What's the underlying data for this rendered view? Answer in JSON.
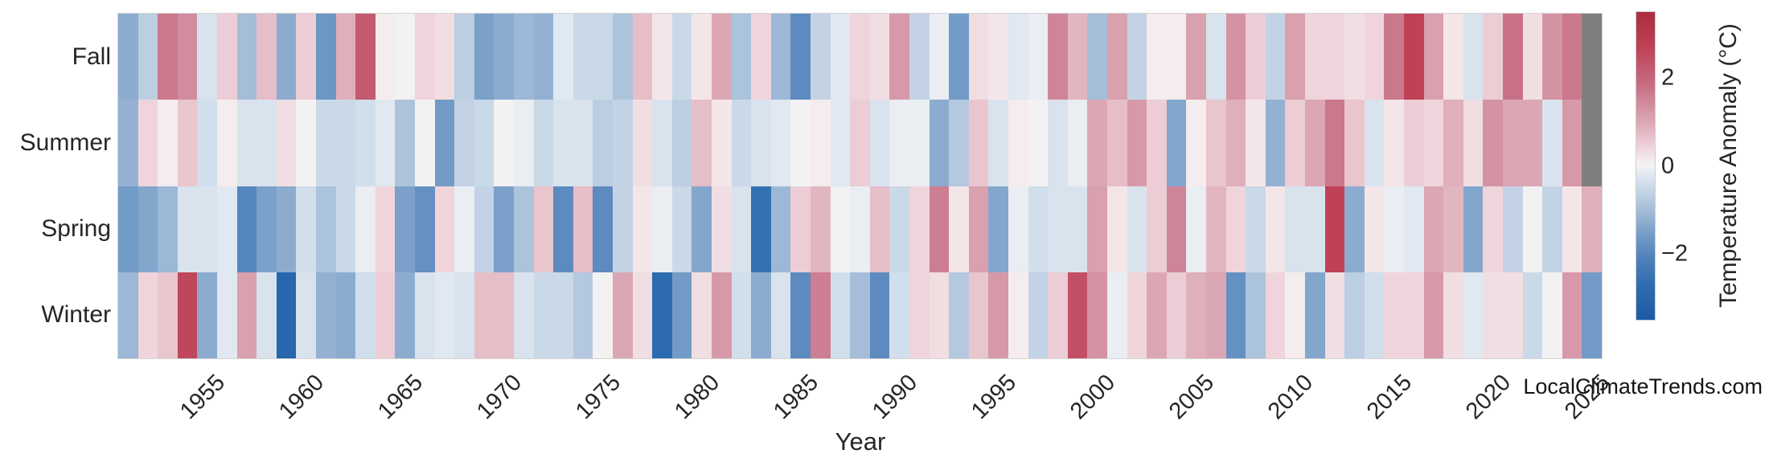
{
  "watermark": "LocalClimateTrends.com",
  "chart_data": {
    "type": "heatmap",
    "xlabel": "Year",
    "rows": [
      "Fall",
      "Summer",
      "Spring",
      "Winter"
    ],
    "year_start": 1951,
    "year_end": 2025,
    "x_ticks": [
      1955,
      1960,
      1965,
      1970,
      1975,
      1980,
      1985,
      1990,
      1995,
      2000,
      2005,
      2010,
      2015,
      2020,
      2025
    ],
    "series": [
      {
        "name": "Fall",
        "values": [
          -1.3,
          -0.7,
          1.7,
          1.4,
          -0.3,
          0.5,
          -1.0,
          0.7,
          -1.3,
          0.5,
          -1.7,
          0.9,
          2.2,
          0.1,
          0.0,
          0.4,
          0.3,
          -0.7,
          -1.5,
          -1.3,
          -1.1,
          -1.2,
          -0.2,
          -0.5,
          -0.5,
          -0.9,
          0.7,
          0.2,
          -0.5,
          0.2,
          1.0,
          -0.9,
          0.4,
          -1.1,
          -1.9,
          -0.6,
          -0.2,
          0.4,
          0.3,
          1.2,
          -0.6,
          -0.1,
          -1.6,
          0.3,
          0.2,
          -0.2,
          -0.1,
          1.5,
          0.8,
          -1.0,
          1.1,
          -0.6,
          0.1,
          0.1,
          1.1,
          -0.3,
          1.3,
          0.5,
          -0.6,
          1.1,
          0.4,
          0.4,
          0.3,
          0.4,
          1.7,
          2.7,
          1.1,
          0.2,
          -0.3,
          0.5,
          1.8,
          0.3,
          1.3,
          1.7,
          null
        ]
      },
      {
        "name": "Summer",
        "values": [
          -1.2,
          0.4,
          0.1,
          0.6,
          -0.4,
          0.1,
          -0.3,
          -0.3,
          0.3,
          0.0,
          -0.5,
          -0.5,
          -0.4,
          -0.2,
          -0.9,
          0.0,
          -1.6,
          -0.6,
          -0.5,
          0.0,
          -0.1,
          -0.5,
          -0.3,
          -0.3,
          -0.7,
          -0.6,
          0.3,
          -0.3,
          -0.7,
          0.7,
          0.2,
          -0.5,
          -0.3,
          -0.2,
          0.0,
          0.1,
          -0.2,
          0.5,
          -0.3,
          -0.1,
          -0.1,
          -1.3,
          -0.8,
          0.6,
          -0.3,
          0.1,
          0.0,
          -0.3,
          -0.1,
          1.0,
          0.7,
          1.2,
          0.5,
          -1.4,
          0.1,
          0.6,
          0.9,
          0.2,
          -1.2,
          0.5,
          1.0,
          1.7,
          0.6,
          -0.3,
          0.2,
          0.5,
          0.4,
          0.9,
          0.3,
          1.3,
          1.0,
          1.0,
          -0.3,
          1.2,
          null
        ]
      },
      {
        "name": "Spring",
        "values": [
          -1.6,
          -1.4,
          -1.1,
          -0.3,
          -0.3,
          -0.2,
          -2.0,
          -1.5,
          -1.3,
          -0.4,
          -0.9,
          -0.5,
          -0.1,
          0.4,
          -1.5,
          -1.8,
          0.4,
          -0.1,
          -0.6,
          -1.5,
          -0.9,
          0.6,
          -1.9,
          0.7,
          -1.9,
          -0.6,
          0.2,
          -0.1,
          -0.5,
          -1.4,
          0.3,
          -0.3,
          -2.6,
          -1.1,
          0.5,
          0.8,
          0.0,
          -0.1,
          0.7,
          -0.5,
          0.4,
          1.6,
          0.2,
          1.1,
          -1.4,
          -0.1,
          -0.4,
          -0.3,
          -0.3,
          1.1,
          0.2,
          -0.3,
          0.5,
          1.5,
          -0.1,
          0.8,
          0.4,
          -0.5,
          0.2,
          -0.3,
          -0.3,
          2.7,
          -1.3,
          0.2,
          -0.1,
          -0.2,
          1.0,
          0.8,
          -1.4,
          0.4,
          -0.6,
          0.0,
          -0.6,
          0.2,
          0.9
        ]
      },
      {
        "name": "Winter",
        "values": [
          -1.1,
          0.4,
          0.6,
          2.6,
          -1.3,
          -0.2,
          1.1,
          -0.3,
          -3.0,
          -0.3,
          -1.2,
          -1.3,
          -0.4,
          0.5,
          -1.3,
          -0.3,
          -0.2,
          -0.3,
          0.7,
          0.7,
          -0.3,
          -0.5,
          -0.5,
          -0.8,
          0.0,
          1.0,
          0.3,
          -2.8,
          -1.6,
          0.3,
          1.2,
          -0.4,
          -1.3,
          -0.3,
          -1.9,
          1.6,
          -0.4,
          -1.0,
          -1.9,
          -0.4,
          0.4,
          0.3,
          -0.8,
          0.6,
          1.2,
          0.1,
          -0.6,
          0.5,
          2.4,
          1.3,
          -0.1,
          0.4,
          1.0,
          0.5,
          0.9,
          1.0,
          -1.8,
          -0.9,
          0.4,
          0.1,
          -1.4,
          0.3,
          -0.7,
          -0.4,
          0.4,
          0.4,
          1.2,
          0.3,
          -0.2,
          0.3,
          0.3,
          -0.5,
          0.0,
          1.2,
          -1.6
        ]
      }
    ],
    "missing_value_color": "#7f7f7f",
    "colormap_stops": [
      [
        -3.5,
        "#1c5aa6"
      ],
      [
        -2.7,
        "#2f6db1"
      ],
      [
        -2.0,
        "#5586bd"
      ],
      [
        -1.5,
        "#7ba0c9"
      ],
      [
        -1.0,
        "#a5bdd9"
      ],
      [
        -0.5,
        "#cad9e8"
      ],
      [
        -0.2,
        "#e0e8f1"
      ],
      [
        0.0,
        "#f3f2f3"
      ],
      [
        0.2,
        "#f4e6e8"
      ],
      [
        0.5,
        "#eccdd5"
      ],
      [
        1.0,
        "#dca7b4"
      ],
      [
        1.5,
        "#cf8598"
      ],
      [
        2.0,
        "#c5647a"
      ],
      [
        2.7,
        "#bf4156"
      ],
      [
        3.5,
        "#aa2d40"
      ]
    ],
    "colorbar": {
      "label": "Temperature Anomaly (°C)",
      "vmin": -3.5,
      "vmax": 3.5,
      "ticks": [
        {
          "value": 2,
          "label": "2"
        },
        {
          "value": 0,
          "label": "0"
        },
        {
          "value": -2,
          "label": "−2"
        }
      ]
    },
    "grid": false,
    "legend_position": "right-colorbar"
  }
}
